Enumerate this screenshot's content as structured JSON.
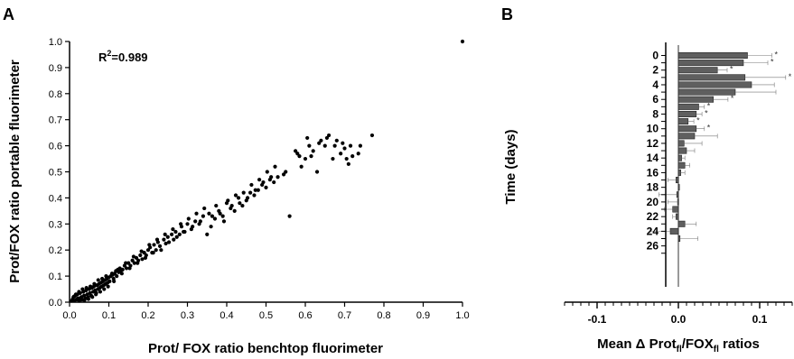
{
  "panel_labels": {
    "a": "A",
    "b": "B"
  },
  "chart_data": [
    {
      "type": "scatter",
      "panel": "A",
      "xlabel": "Prot/ FOX ratio benchtop fluorimeter",
      "ylabel": "Prot/FOX ratio portable fluorimeter",
      "xlim": [
        0,
        1
      ],
      "ylim": [
        0,
        1
      ],
      "x_ticks": [
        "0.0",
        "0.1",
        "0.2",
        "0.3",
        "0.4",
        "0.5",
        "0.6",
        "0.7",
        "0.8",
        "0.9",
        "1.0"
      ],
      "y_ticks": [
        "0.0",
        "0.1",
        "0.2",
        "0.3",
        "0.4",
        "0.5",
        "0.6",
        "0.7",
        "0.8",
        "0.9",
        "1.0"
      ],
      "annotation": {
        "base": "R",
        "sup": "2",
        "rest": "=0.989"
      },
      "grid": false,
      "points": [
        [
          0.005,
          0.005
        ],
        [
          0.008,
          0.012
        ],
        [
          0.01,
          0.02
        ],
        [
          0.012,
          0.006
        ],
        [
          0.015,
          0.025
        ],
        [
          0.018,
          0.01
        ],
        [
          0.02,
          0.03
        ],
        [
          0.022,
          0.015
        ],
        [
          0.025,
          0.005
        ],
        [
          0.027,
          0.035
        ],
        [
          0.03,
          0.02
        ],
        [
          0.032,
          0.01
        ],
        [
          0.035,
          0.04
        ],
        [
          0.037,
          0.025
        ],
        [
          0.04,
          0.015
        ],
        [
          0.042,
          0.045
        ],
        [
          0.045,
          0.03
        ],
        [
          0.047,
          0.02
        ],
        [
          0.05,
          0.05
        ],
        [
          0.052,
          0.035
        ],
        [
          0.055,
          0.025
        ],
        [
          0.057,
          0.055
        ],
        [
          0.06,
          0.04
        ],
        [
          0.062,
          0.06
        ],
        [
          0.065,
          0.045
        ],
        [
          0.067,
          0.03
        ],
        [
          0.07,
          0.065
        ],
        [
          0.072,
          0.05
        ],
        [
          0.075,
          0.07
        ],
        [
          0.077,
          0.055
        ],
        [
          0.08,
          0.075
        ],
        [
          0.082,
          0.06
        ],
        [
          0.085,
          0.08
        ],
        [
          0.087,
          0.065
        ],
        [
          0.09,
          0.085
        ],
        [
          0.092,
          0.07
        ],
        [
          0.095,
          0.09
        ],
        [
          0.097,
          0.075
        ],
        [
          0.1,
          0.095
        ],
        [
          0.102,
          0.08
        ],
        [
          0.105,
          0.1
        ],
        [
          0.11,
          0.105
        ],
        [
          0.112,
          0.09
        ],
        [
          0.115,
          0.11
        ],
        [
          0.118,
          0.12
        ],
        [
          0.12,
          0.1
        ],
        [
          0.125,
          0.115
        ],
        [
          0.128,
          0.13
        ],
        [
          0.13,
          0.12
        ],
        [
          0.135,
          0.125
        ],
        [
          0.14,
          0.14
        ],
        [
          0.145,
          0.13
        ],
        [
          0.15,
          0.15
        ],
        [
          0.155,
          0.14
        ],
        [
          0.16,
          0.16
        ],
        [
          0.165,
          0.15
        ],
        [
          0.17,
          0.17
        ],
        [
          0.175,
          0.16
        ],
        [
          0.18,
          0.18
        ],
        [
          0.185,
          0.165
        ],
        [
          0.19,
          0.19
        ],
        [
          0.195,
          0.18
        ],
        [
          0.2,
          0.2
        ],
        [
          0.205,
          0.21
        ],
        [
          0.21,
          0.19
        ],
        [
          0.215,
          0.22
        ],
        [
          0.22,
          0.2
        ],
        [
          0.225,
          0.23
        ],
        [
          0.23,
          0.215
        ],
        [
          0.24,
          0.24
        ],
        [
          0.245,
          0.225
        ],
        [
          0.25,
          0.25
        ],
        [
          0.26,
          0.26
        ],
        [
          0.265,
          0.24
        ],
        [
          0.27,
          0.27
        ],
        [
          0.28,
          0.26
        ],
        [
          0.285,
          0.29
        ],
        [
          0.29,
          0.27
        ],
        [
          0.3,
          0.3
        ],
        [
          0.31,
          0.28
        ],
        [
          0.32,
          0.31
        ],
        [
          0.33,
          0.3
        ],
        [
          0.34,
          0.33
        ],
        [
          0.35,
          0.26
        ],
        [
          0.355,
          0.34
        ],
        [
          0.36,
          0.29
        ],
        [
          0.37,
          0.32
        ],
        [
          0.38,
          0.35
        ],
        [
          0.39,
          0.33
        ],
        [
          0.4,
          0.38
        ],
        [
          0.41,
          0.36
        ],
        [
          0.42,
          0.35
        ],
        [
          0.43,
          0.4
        ],
        [
          0.44,
          0.37
        ],
        [
          0.45,
          0.39
        ],
        [
          0.46,
          0.42
        ],
        [
          0.47,
          0.41
        ],
        [
          0.48,
          0.43
        ],
        [
          0.49,
          0.45
        ],
        [
          0.5,
          0.44
        ],
        [
          0.51,
          0.47
        ],
        [
          0.52,
          0.46
        ],
        [
          0.53,
          0.48
        ],
        [
          0.55,
          0.5
        ],
        [
          0.56,
          0.33
        ],
        [
          0.58,
          0.57
        ],
        [
          0.59,
          0.52
        ],
        [
          0.6,
          0.55
        ],
        [
          0.61,
          0.6
        ],
        [
          0.62,
          0.58
        ],
        [
          0.63,
          0.5
        ],
        [
          0.64,
          0.62
        ],
        [
          0.65,
          0.6
        ],
        [
          0.66,
          0.64
        ],
        [
          0.67,
          0.55
        ],
        [
          0.68,
          0.62
        ],
        [
          0.69,
          0.57
        ],
        [
          0.7,
          0.59
        ],
        [
          0.71,
          0.53
        ],
        [
          0.72,
          0.56
        ],
        [
          0.74,
          0.6
        ],
        [
          0.77,
          0.64
        ],
        [
          1.0,
          1.0
        ],
        [
          0.012,
          0.022
        ],
        [
          0.016,
          0.03
        ],
        [
          0.024,
          0.04
        ],
        [
          0.028,
          0.012
        ],
        [
          0.033,
          0.05
        ],
        [
          0.038,
          0.008
        ],
        [
          0.043,
          0.055
        ],
        [
          0.048,
          0.012
        ],
        [
          0.053,
          0.06
        ],
        [
          0.058,
          0.02
        ],
        [
          0.063,
          0.07
        ],
        [
          0.068,
          0.035
        ],
        [
          0.073,
          0.085
        ],
        [
          0.078,
          0.04
        ],
        [
          0.083,
          0.09
        ],
        [
          0.088,
          0.05
        ],
        [
          0.093,
          0.1
        ],
        [
          0.098,
          0.06
        ],
        [
          0.108,
          0.11
        ],
        [
          0.113,
          0.08
        ],
        [
          0.123,
          0.125
        ],
        [
          0.133,
          0.11
        ],
        [
          0.143,
          0.15
        ],
        [
          0.153,
          0.13
        ],
        [
          0.163,
          0.175
        ],
        [
          0.173,
          0.15
        ],
        [
          0.183,
          0.195
        ],
        [
          0.193,
          0.17
        ],
        [
          0.203,
          0.22
        ],
        [
          0.213,
          0.19
        ],
        [
          0.223,
          0.24
        ],
        [
          0.233,
          0.2
        ],
        [
          0.243,
          0.26
        ],
        [
          0.253,
          0.23
        ],
        [
          0.263,
          0.28
        ],
        [
          0.273,
          0.25
        ],
        [
          0.283,
          0.3
        ],
        [
          0.293,
          0.27
        ],
        [
          0.303,
          0.32
        ],
        [
          0.313,
          0.29
        ],
        [
          0.323,
          0.34
        ],
        [
          0.333,
          0.31
        ],
        [
          0.343,
          0.36
        ],
        [
          0.363,
          0.33
        ],
        [
          0.373,
          0.37
        ],
        [
          0.383,
          0.34
        ],
        [
          0.393,
          0.31
        ],
        [
          0.403,
          0.39
        ],
        [
          0.413,
          0.37
        ],
        [
          0.423,
          0.41
        ],
        [
          0.433,
          0.38
        ],
        [
          0.443,
          0.42
        ],
        [
          0.453,
          0.4
        ],
        [
          0.463,
          0.45
        ],
        [
          0.473,
          0.43
        ],
        [
          0.483,
          0.47
        ],
        [
          0.493,
          0.46
        ],
        [
          0.503,
          0.5
        ],
        [
          0.513,
          0.48
        ],
        [
          0.523,
          0.52
        ],
        [
          0.545,
          0.49
        ],
        [
          0.575,
          0.58
        ],
        [
          0.585,
          0.56
        ],
        [
          0.605,
          0.63
        ],
        [
          0.615,
          0.56
        ],
        [
          0.635,
          0.61
        ],
        [
          0.655,
          0.63
        ],
        [
          0.675,
          0.6
        ],
        [
          0.695,
          0.61
        ],
        [
          0.705,
          0.55
        ],
        [
          0.715,
          0.6
        ],
        [
          0.735,
          0.57
        ]
      ]
    },
    {
      "type": "bar",
      "orientation": "horizontal",
      "panel": "B",
      "xlabel": {
        "prefix": "Mean Δ Prot",
        "sub1": "fl",
        "mid": "/FOX",
        "sub2": "fl",
        "suffix": " ratios"
      },
      "ylabel": "Time (days)",
      "xlim": [
        -0.15,
        0.15
      ],
      "x_ticks": [
        "-0.1",
        "0.0",
        "0.1"
      ],
      "x_tick_values": [
        -0.1,
        0.0,
        0.1
      ],
      "y_tick_labels": [
        "0",
        "2",
        "4",
        "6",
        "8",
        "10",
        "12",
        "14",
        "16",
        "18",
        "20",
        "22",
        "24",
        "26"
      ],
      "bar_color": "#5f5f5f",
      "days": [
        0,
        1,
        2,
        3,
        4,
        5,
        6,
        7,
        8,
        9,
        10,
        11,
        12,
        13,
        14,
        15,
        16,
        17,
        18,
        19,
        20,
        21,
        22,
        23,
        24,
        25,
        26,
        27
      ],
      "values": [
        0.085,
        0.08,
        0.048,
        0.082,
        0.09,
        0.07,
        0.043,
        0.025,
        0.022,
        0.012,
        0.022,
        0.02,
        0.007,
        0.01,
        0.004,
        0.008,
        0.003,
        -0.003,
        0.0,
        -0.002,
        -0.001,
        -0.007,
        -0.003,
        0.008,
        -0.01,
        0.002,
        null,
        null
      ],
      "errors": [
        0.03,
        0.03,
        0.012,
        0.05,
        0.028,
        0.05,
        0.018,
        0.007,
        0.007,
        0.007,
        0.01,
        0.028,
        0.022,
        0.01,
        0.004,
        0.006,
        0.005,
        0.01,
        0.0,
        0.022,
        0.012,
        0.01,
        0.004,
        0.014,
        0.025,
        0.022,
        null,
        null
      ],
      "significant": [
        true,
        true,
        true,
        true,
        false,
        false,
        true,
        true,
        true,
        true,
        true,
        false,
        false,
        false,
        false,
        false,
        false,
        false,
        false,
        false,
        false,
        false,
        false,
        false,
        false,
        false,
        false,
        false
      ],
      "significance_marker": "*"
    }
  ]
}
